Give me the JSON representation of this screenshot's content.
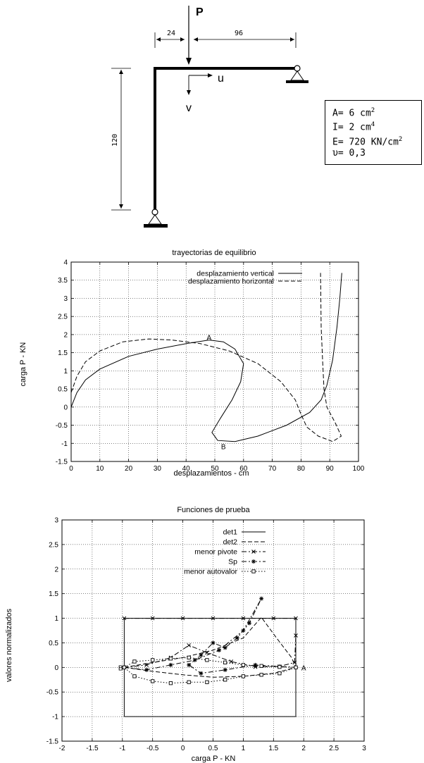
{
  "frame": {
    "load_label": "P",
    "dim_left": "24",
    "dim_right": "96",
    "dim_height": "120",
    "u_label": "u",
    "v_label": "v",
    "properties": [
      {
        "text": "A= 6 cm",
        "sup": "2"
      },
      {
        "text": "I= 2 cm",
        "sup": "4"
      },
      {
        "text": "E= 720 KN/cm",
        "sup": "2"
      },
      {
        "text": "υ= 0,3",
        "sup": ""
      }
    ]
  },
  "chart_data": [
    {
      "type": "line",
      "title": "trayectorias de equilibrio",
      "xlabel": "desplazamientos - cm",
      "ylabel": "carga P - KN",
      "xlim": [
        0,
        100
      ],
      "ylim": [
        -1.5,
        4
      ],
      "xticks": [
        "0",
        "10",
        "20",
        "30",
        "40",
        "50",
        "60",
        "70",
        "80",
        "90",
        "100"
      ],
      "yticks": [
        "-1.5",
        "-1",
        "-0.5",
        "0",
        "0.5",
        "1",
        "1.5",
        "2",
        "2.5",
        "3",
        "3.5",
        "4"
      ],
      "grid": true,
      "legend_position": "top-right",
      "annotations": [
        {
          "text": "A",
          "x": 48,
          "y": 1.93
        },
        {
          "text": "B",
          "x": 53,
          "y": -1.08
        }
      ],
      "series": [
        {
          "name": "desplazamiento vertical",
          "style": "solid",
          "points": [
            [
              0,
              0
            ],
            [
              2,
              0.4
            ],
            [
              5,
              0.75
            ],
            [
              10,
              1.05
            ],
            [
              20,
              1.4
            ],
            [
              30,
              1.6
            ],
            [
              40,
              1.75
            ],
            [
              48,
              1.85
            ],
            [
              53,
              1.8
            ],
            [
              57,
              1.6
            ],
            [
              60,
              1.2
            ],
            [
              59,
              0.7
            ],
            [
              56,
              0.2
            ],
            [
              52,
              -0.3
            ],
            [
              49,
              -0.7
            ],
            [
              51,
              -0.92
            ],
            [
              57,
              -0.95
            ],
            [
              65,
              -0.8
            ],
            [
              75,
              -0.5
            ],
            [
              83,
              -0.15
            ],
            [
              87,
              0.2
            ],
            [
              89,
              0.6
            ],
            [
              91,
              1.3
            ],
            [
              92.5,
              2.2
            ],
            [
              93.5,
              3
            ],
            [
              94.2,
              3.7
            ]
          ]
        },
        {
          "name": "desplazamiento horizontal",
          "style": "dashed",
          "points": [
            [
              0,
              0.4
            ],
            [
              2,
              0.85
            ],
            [
              5,
              1.25
            ],
            [
              10,
              1.55
            ],
            [
              18,
              1.8
            ],
            [
              27,
              1.88
            ],
            [
              35,
              1.85
            ],
            [
              45,
              1.75
            ],
            [
              55,
              1.55
            ],
            [
              65,
              1.2
            ],
            [
              73,
              0.7
            ],
            [
              78,
              0.2
            ],
            [
              80,
              -0.2
            ],
            [
              82,
              -0.55
            ],
            [
              86,
              -0.8
            ],
            [
              91,
              -0.95
            ],
            [
              94,
              -0.8
            ],
            [
              92,
              -0.45
            ],
            [
              89,
              0
            ],
            [
              88,
              0.5
            ],
            [
              87.5,
              1.3
            ],
            [
              87,
              2.2
            ],
            [
              86.8,
              3.7
            ]
          ]
        }
      ]
    },
    {
      "type": "line",
      "title": "Funciones de prueba",
      "xlabel": "carga P - KN",
      "ylabel": "valores normalizados",
      "xlim": [
        -2,
        3
      ],
      "ylim": [
        -1.5,
        3
      ],
      "xticks": [
        "-2",
        "-1.5",
        "-1",
        "-0.5",
        "0",
        "0.5",
        "1",
        "1.5",
        "2",
        "2.5",
        "3"
      ],
      "yticks": [
        "-1.5",
        "-1",
        "-0.5",
        "0",
        "0.5",
        "1",
        "1.5",
        "2",
        "2.5",
        "3"
      ],
      "grid": true,
      "legend_position": "top-right",
      "annotations": [
        {
          "text": "B",
          "x": -1.03,
          "y": 0
        },
        {
          "text": "A",
          "x": 2.0,
          "y": 0
        }
      ],
      "series": [
        {
          "name": "det1",
          "style": "solid",
          "marker": "none",
          "points": [
            [
              -0.97,
              -1
            ],
            [
              -0.97,
              1
            ],
            [
              1.87,
              1
            ],
            [
              1.87,
              -1
            ],
            [
              -0.97,
              -1
            ]
          ]
        },
        {
          "name": "det2",
          "style": "dashed",
          "marker": "none",
          "points": [
            [
              -0.97,
              0
            ],
            [
              -0.5,
              0.1
            ],
            [
              0,
              0.2
            ],
            [
              0.5,
              0.35
            ],
            [
              1,
              0.6
            ],
            [
              1.3,
              1.02
            ],
            [
              1.55,
              0.6
            ],
            [
              1.8,
              0.2
            ],
            [
              1.87,
              0
            ],
            [
              1.5,
              -0.12
            ],
            [
              1,
              -0.18
            ],
            [
              0.5,
              -0.2
            ],
            [
              0,
              -0.15
            ],
            [
              -0.5,
              -0.08
            ],
            [
              -0.97,
              0
            ]
          ]
        },
        {
          "name": "menor pivote",
          "style": "dashdot",
          "marker": "x",
          "points": [
            [
              -0.97,
              1
            ],
            [
              -0.5,
              1
            ],
            [
              0,
              1
            ],
            [
              0.5,
              1
            ],
            [
              1,
              1
            ],
            [
              1.5,
              1
            ],
            [
              1.87,
              1
            ],
            [
              1.87,
              0.65
            ],
            [
              1.85,
              0.1
            ],
            [
              1.6,
              0.02
            ],
            [
              1.2,
              0.01
            ],
            [
              0.8,
              0.12
            ],
            [
              0.4,
              0.3
            ],
            [
              0.1,
              0.45
            ],
            [
              -0.2,
              0.2
            ],
            [
              -0.6,
              0.05
            ],
            [
              -0.97,
              0
            ]
          ]
        },
        {
          "name": "Sp",
          "style": "dashdot",
          "marker": "star",
          "points": [
            [
              -0.97,
              0
            ],
            [
              -0.6,
              -0.05
            ],
            [
              -0.2,
              0.05
            ],
            [
              0.2,
              0.15
            ],
            [
              0.6,
              0.35
            ],
            [
              1.0,
              0.75
            ],
            [
              1.3,
              1.4
            ],
            [
              1.1,
              0.9
            ],
            [
              0.9,
              0.6
            ],
            [
              0.7,
              0.4
            ],
            [
              0.5,
              0.5
            ],
            [
              0.3,
              0.25
            ],
            [
              0.1,
              0.05
            ],
            [
              0.3,
              -0.12
            ],
            [
              0.7,
              -0.05
            ],
            [
              1.2,
              0.05
            ],
            [
              1.6,
              0.02
            ],
            [
              1.87,
              0
            ]
          ]
        },
        {
          "name": "menor autovalor",
          "style": "dotted",
          "marker": "square",
          "points": [
            [
              -0.97,
              0
            ],
            [
              -0.8,
              0.12
            ],
            [
              -0.5,
              0.15
            ],
            [
              -0.2,
              0.18
            ],
            [
              0.1,
              0.2
            ],
            [
              0.4,
              0.15
            ],
            [
              0.7,
              0.1
            ],
            [
              1.0,
              0.05
            ],
            [
              1.3,
              0.03
            ],
            [
              1.6,
              0.01
            ],
            [
              1.87,
              0
            ],
            [
              1.6,
              -0.12
            ],
            [
              1.3,
              -0.15
            ],
            [
              1.0,
              -0.18
            ],
            [
              0.7,
              -0.25
            ],
            [
              0.4,
              -0.3
            ],
            [
              0.1,
              -0.3
            ],
            [
              -0.2,
              -0.32
            ],
            [
              -0.5,
              -0.28
            ],
            [
              -0.8,
              -0.18
            ],
            [
              -0.97,
              0
            ]
          ]
        }
      ]
    }
  ]
}
